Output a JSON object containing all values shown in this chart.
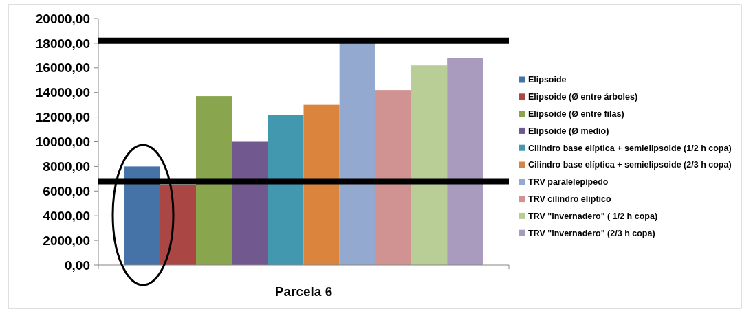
{
  "chart_data": {
    "type": "bar",
    "categories": [
      "Parcela 6"
    ],
    "series": [
      {
        "name": "Elipsoide",
        "color": "#4572a7",
        "values": [
          8000
        ]
      },
      {
        "name": "Elipsoide (Ø entre árboles)",
        "color": "#aa4643",
        "values": [
          6500
        ]
      },
      {
        "name": "Elipsoide (Ø entre filas)",
        "color": "#89a54e",
        "values": [
          13700
        ]
      },
      {
        "name": "Elipsoide (Ø medio)",
        "color": "#71588f",
        "values": [
          10000
        ]
      },
      {
        "name": "Cilindro base elíptica + semielipsoide (1/2 h copa)",
        "color": "#4198af",
        "values": [
          12200
        ]
      },
      {
        "name": "Cilindro base elíptica + semielipsoide (2/3 h copa)",
        "color": "#db843d",
        "values": [
          13000
        ]
      },
      {
        "name": "TRV paralelepípedo",
        "color": "#93a9cf",
        "values": [
          18000
        ]
      },
      {
        "name": "TRV cilindro elíptico",
        "color": "#d19392",
        "values": [
          14200
        ]
      },
      {
        "name": "TRV \"invernadero\" ( 1/2 h copa)",
        "color": "#b9cd96",
        "values": [
          16200
        ]
      },
      {
        "name": "TRV \"invernadero\" (2/3 h copa)",
        "color": "#a99bbd",
        "values": [
          16800
        ]
      }
    ],
    "ylim": [
      0,
      20000
    ],
    "yticks": [
      {
        "value": 0,
        "label": "0,00"
      },
      {
        "value": 2000,
        "label": "2000,00"
      },
      {
        "value": 4000,
        "label": "4000,00"
      },
      {
        "value": 6000,
        "label": "6000,00"
      },
      {
        "value": 8000,
        "label": "8000,00"
      },
      {
        "value": 10000,
        "label": "10000,00"
      },
      {
        "value": 12000,
        "label": "12000,00"
      },
      {
        "value": 14000,
        "label": "14000,00"
      },
      {
        "value": 16000,
        "label": "16000,00"
      },
      {
        "value": 18000,
        "label": "18000,00"
      },
      {
        "value": 20000,
        "label": "20000,00"
      }
    ],
    "ref_lines": [
      {
        "axis": "y",
        "value": 18200,
        "label": null,
        "color": "#000000"
      },
      {
        "axis": "y",
        "value": 6800,
        "label": null,
        "color": "#000000"
      }
    ],
    "grid": false,
    "legend": "right"
  }
}
